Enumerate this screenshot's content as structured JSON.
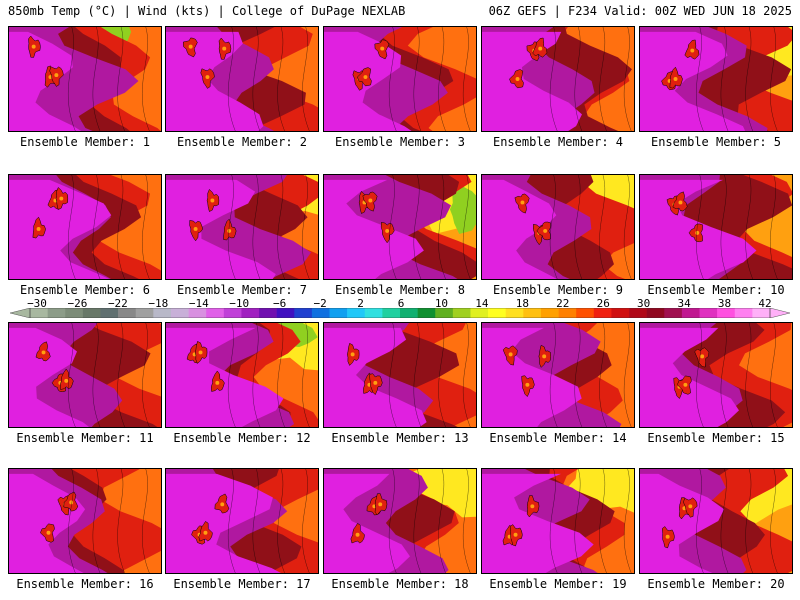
{
  "header": {
    "left_text": "850mb Temp (°C) | Wind (kts) | College of DuPage NEXLAB",
    "right_text": "06Z GEFS | F234 Valid: 00Z WED JUN 18 2025"
  },
  "members": [
    {
      "caption": "Ensemble Member: 1"
    },
    {
      "caption": "Ensemble Member: 2"
    },
    {
      "caption": "Ensemble Member: 3"
    },
    {
      "caption": "Ensemble Member: 4"
    },
    {
      "caption": "Ensemble Member: 5"
    },
    {
      "caption": "Ensemble Member: 6"
    },
    {
      "caption": "Ensemble Member: 7"
    },
    {
      "caption": "Ensemble Member: 8"
    },
    {
      "caption": "Ensemble Member: 9"
    },
    {
      "caption": "Ensemble Member: 10"
    },
    {
      "caption": "Ensemble Member: 11"
    },
    {
      "caption": "Ensemble Member: 12"
    },
    {
      "caption": "Ensemble Member: 13"
    },
    {
      "caption": "Ensemble Member: 14"
    },
    {
      "caption": "Ensemble Member: 15"
    },
    {
      "caption": "Ensemble Member: 16"
    },
    {
      "caption": "Ensemble Member: 17"
    },
    {
      "caption": "Ensemble Member: 18"
    },
    {
      "caption": "Ensemble Member: 19"
    },
    {
      "caption": "Ensemble Member: 20"
    }
  ],
  "colorbar": {
    "tick_labels": [
      "−30",
      "−26",
      "−22",
      "−18",
      "−14",
      "−10",
      "−6",
      "−2",
      "2",
      "6",
      "10",
      "14",
      "18",
      "22",
      "26",
      "30",
      "34",
      "38",
      "42"
    ],
    "colors": [
      "#a8b8a0",
      "#8c9c88",
      "#7c8c78",
      "#687868",
      "#607070",
      "#888888",
      "#a0a0a0",
      "#b8b8c8",
      "#c8b0d8",
      "#d890e0",
      "#e060e8",
      "#c040d8",
      "#a020c0",
      "#7010b0",
      "#4010c0",
      "#2040d0",
      "#1070e0",
      "#10a0f0",
      "#20c8f8",
      "#30e0e0",
      "#20d0a0",
      "#10b070",
      "#109030",
      "#60b020",
      "#a0d020",
      "#e0f020",
      "#ffff20",
      "#ffe020",
      "#ffc010",
      "#ffa000",
      "#ff8000",
      "#ff5000",
      "#f02010",
      "#d01010",
      "#b00818",
      "#900820",
      "#a01050",
      "#c01890",
      "#e030c0",
      "#ff50e0",
      "#ff80f0",
      "#ffb0f8"
    ]
  },
  "palette": {
    "magenta": "#e020e0",
    "purple": "#b018a0",
    "darkred": "#901018",
    "red": "#e02010",
    "orange": "#ff7010",
    "ltorange": "#ffa010",
    "yellow": "#ffe820",
    "green": "#90d020"
  }
}
